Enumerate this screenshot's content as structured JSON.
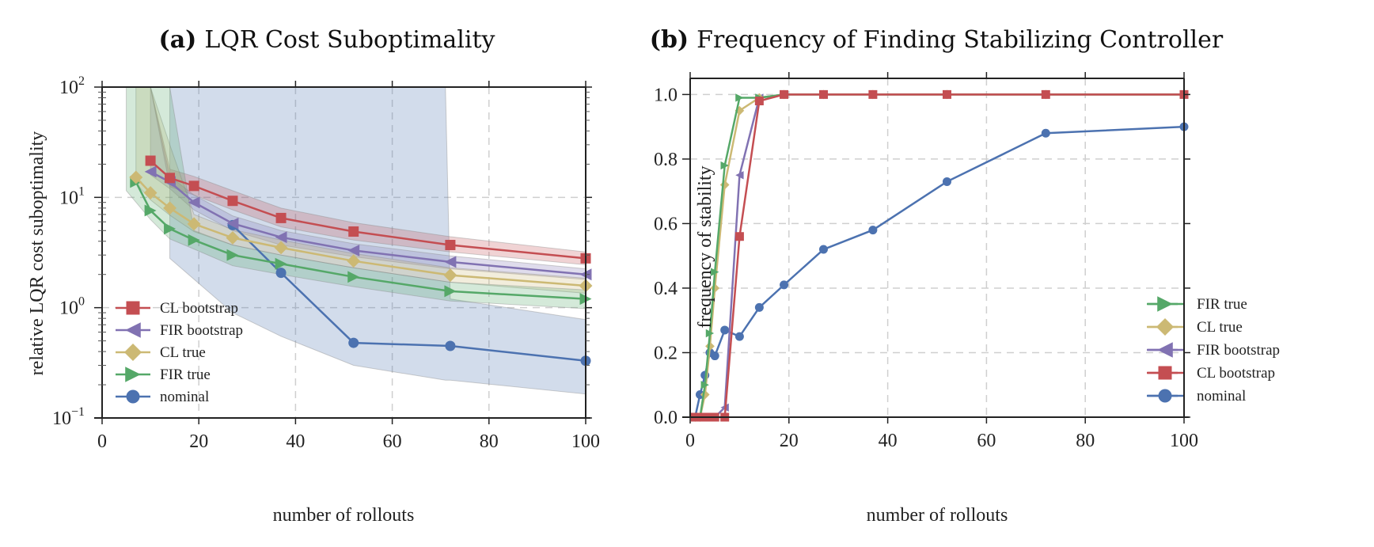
{
  "colors": {
    "CL bootstrap": "#c44e52",
    "FIR bootstrap": "#8172b2",
    "CL true": "#ccb974",
    "FIR true": "#55a868",
    "nominal": "#4c72b0"
  },
  "chart_data": [
    {
      "type": "line",
      "panel_label": "(a)",
      "title": "LQR Cost Suboptimality",
      "xlabel": "number of rollouts",
      "ylabel": "relative LQR cost suboptimality",
      "xlim": [
        0,
        100
      ],
      "ylim": [
        0.1,
        100
      ],
      "yscale": "log",
      "xticks": [
        0,
        20,
        40,
        60,
        80,
        100
      ],
      "xtick_labels": [
        "0",
        "20",
        "40",
        "60",
        "80",
        "100"
      ],
      "yticks": [
        0.1,
        1,
        10,
        100
      ],
      "ytick_labels": [
        [
          "10",
          "−1"
        ],
        [
          "10",
          "0"
        ],
        [
          "10",
          "1"
        ],
        [
          "10",
          "2"
        ]
      ],
      "grid": true,
      "legend_position": "lower-left",
      "legend_order": [
        "CL bootstrap",
        "FIR bootstrap",
        "CL true",
        "FIR true",
        "nominal"
      ],
      "series": [
        {
          "name": "CL bootstrap",
          "marker": "square",
          "x": [
            10,
            14,
            19,
            27,
            37,
            52,
            72,
            100
          ],
          "y": [
            21.5,
            15.0,
            12.7,
            9.3,
            6.5,
            4.9,
            3.7,
            2.8
          ],
          "band_lower": [
            100,
            12.5,
            10.5,
            7.7,
            5.4,
            4.1,
            3.2,
            2.45
          ],
          "band_upper": [
            100,
            18.0,
            15.5,
            11.5,
            8.0,
            5.9,
            4.4,
            3.2
          ],
          "band_x": [
            10,
            14,
            19,
            27,
            37,
            52,
            72,
            100
          ]
        },
        {
          "name": "FIR bootstrap",
          "marker": "triangle-left",
          "x": [
            10,
            14,
            19,
            27,
            37,
            52,
            72,
            100
          ],
          "y": [
            17.1,
            13.8,
            9.0,
            5.8,
            4.35,
            3.3,
            2.6,
            2.0
          ],
          "band_lower": [
            16,
            12.0,
            7.7,
            5.0,
            3.7,
            2.9,
            2.25,
            1.8
          ],
          "band_upper": [
            100,
            15.5,
            10.5,
            6.8,
            5.0,
            3.8,
            2.95,
            2.25
          ],
          "band_x": [
            10,
            14,
            19,
            27,
            37,
            52,
            72,
            100
          ]
        },
        {
          "name": "CL true",
          "marker": "diamond",
          "x": [
            7,
            10,
            14,
            19,
            27,
            37,
            52,
            72,
            100
          ],
          "y": [
            15.2,
            11.0,
            8.0,
            5.75,
            4.3,
            3.5,
            2.65,
            1.97,
            1.58
          ],
          "band_lower": [
            13.5,
            9.5,
            6.9,
            4.9,
            3.7,
            3.0,
            2.3,
            1.7,
            1.35
          ],
          "band_upper": [
            100,
            100,
            30.0,
            7.0,
            5.1,
            4.1,
            3.1,
            2.3,
            1.85
          ],
          "band_x": [
            7,
            10,
            14,
            19,
            27,
            37,
            52,
            72,
            100
          ]
        },
        {
          "name": "FIR true",
          "marker": "triangle-right",
          "x": [
            7,
            10,
            14,
            19,
            27,
            37,
            52,
            72,
            100
          ],
          "y": [
            13.8,
            7.6,
            5.2,
            4.1,
            3.0,
            2.5,
            1.9,
            1.41,
            1.2
          ],
          "band_lower": [
            11.5,
            6.3,
            4.2,
            3.4,
            2.4,
            2.0,
            1.55,
            1.15,
            0.98
          ],
          "band_upper": [
            100,
            100,
            100,
            5.0,
            3.7,
            3.0,
            2.3,
            1.7,
            1.45
          ],
          "band_x": [
            5,
            10,
            14,
            19,
            27,
            37,
            52,
            72,
            100
          ]
        },
        {
          "name": "nominal",
          "marker": "circle",
          "x": [
            27,
            37,
            52,
            72,
            100
          ],
          "y": [
            5.6,
            2.07,
            0.48,
            0.45,
            0.33
          ],
          "band_x": [
            14,
            27,
            37,
            52,
            71,
            72,
            100
          ],
          "band_lower": [
            2.8,
            0.9,
            0.55,
            0.3,
            0.22,
            0.22,
            0.165
          ],
          "band_upper": [
            100,
            100,
            100,
            100,
            100,
            1.2,
            0.78
          ]
        }
      ]
    },
    {
      "type": "line",
      "panel_label": "(b)",
      "title": "Frequency of Finding Stabilizing Controller",
      "xlabel": "number of rollouts",
      "ylabel": "frequency of stability",
      "xlim": [
        0,
        100
      ],
      "ylim": [
        0.0,
        1.05
      ],
      "yscale": "linear",
      "xticks": [
        0,
        20,
        40,
        60,
        80,
        100
      ],
      "xtick_labels": [
        "0",
        "20",
        "40",
        "60",
        "80",
        "100"
      ],
      "yticks": [
        0.0,
        0.2,
        0.4,
        0.6,
        0.8,
        1.0
      ],
      "ytick_labels": [
        "0.0",
        "0.2",
        "0.4",
        "0.6",
        "0.8",
        "1.0"
      ],
      "grid": true,
      "legend_position": "lower-right",
      "legend_order": [
        "FIR true",
        "CL true",
        "FIR bootstrap",
        "CL bootstrap",
        "nominal"
      ],
      "series": [
        {
          "name": "nominal",
          "marker": "circle",
          "x": [
            1,
            2,
            3,
            4,
            5,
            7,
            10,
            14,
            19,
            27,
            37,
            52,
            72,
            100
          ],
          "y": [
            0.0,
            0.07,
            0.13,
            0.2,
            0.19,
            0.27,
            0.25,
            0.34,
            0.41,
            0.52,
            0.58,
            0.73,
            0.88,
            0.9
          ]
        },
        {
          "name": "FIR bootstrap",
          "marker": "triangle-left",
          "x": [
            1,
            2,
            3,
            4,
            5,
            7,
            10,
            14,
            19,
            27,
            37,
            52,
            72,
            100
          ],
          "y": [
            0.0,
            0.0,
            0.0,
            0.0,
            0.0,
            0.03,
            0.75,
            0.99,
            1.0,
            1.0,
            1.0,
            1.0,
            1.0,
            1.0
          ]
        },
        {
          "name": "CL true",
          "marker": "diamond",
          "x": [
            1,
            2,
            3,
            4,
            5,
            7,
            10,
            14,
            19,
            27,
            37,
            52,
            72,
            100
          ],
          "y": [
            0.0,
            0.0,
            0.07,
            0.22,
            0.4,
            0.72,
            0.95,
            0.99,
            1.0,
            1.0,
            1.0,
            1.0,
            1.0,
            1.0
          ]
        },
        {
          "name": "FIR true",
          "marker": "triangle-right",
          "x": [
            1,
            2,
            3,
            4,
            5,
            7,
            10,
            14,
            19,
            27,
            37,
            52,
            72,
            100
          ],
          "y": [
            0.0,
            0.0,
            0.1,
            0.26,
            0.45,
            0.78,
            0.99,
            0.99,
            1.0,
            1.0,
            1.0,
            1.0,
            1.0,
            1.0
          ]
        },
        {
          "name": "CL bootstrap",
          "marker": "square",
          "x": [
            1,
            2,
            3,
            4,
            5,
            7,
            10,
            14,
            19,
            27,
            37,
            52,
            72,
            100
          ],
          "y": [
            0.0,
            0.0,
            0.0,
            0.0,
            0.0,
            0.0,
            0.56,
            0.98,
            1.0,
            1.0,
            1.0,
            1.0,
            1.0,
            1.0
          ]
        }
      ]
    }
  ]
}
